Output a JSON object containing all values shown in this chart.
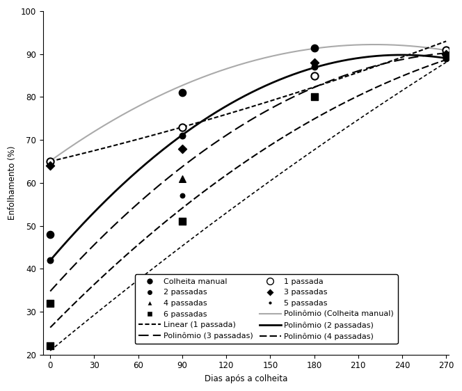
{
  "xlabel": "Dias após a colheita",
  "ylabel": "Enfolhamento (%)",
  "xlim": [
    -5,
    270
  ],
  "ylim": [
    20,
    100
  ],
  "xticks": [
    0,
    30,
    60,
    90,
    120,
    150,
    180,
    210,
    240,
    270
  ],
  "yticks": [
    20,
    30,
    40,
    50,
    60,
    70,
    80,
    90,
    100
  ],
  "scatter_colheita_manual": {
    "x": [
      0,
      90,
      180,
      270
    ],
    "y": [
      48,
      81,
      91.5,
      90
    ]
  },
  "scatter_2passadas": {
    "x": [
      0,
      90,
      180,
      270
    ],
    "y": [
      42,
      71,
      87,
      89
    ]
  },
  "scatter_4passadas": {
    "x": [
      90
    ],
    "y": [
      61
    ]
  },
  "scatter_5passadas": {
    "x": [
      90
    ],
    "y": [
      57
    ]
  },
  "scatter_6passadas": {
    "x": [
      0,
      90,
      180
    ],
    "y": [
      32,
      51,
      80
    ]
  },
  "scatter_1passada": {
    "x": [
      0,
      90,
      180,
      270
    ],
    "y": [
      65,
      73,
      85,
      91
    ]
  },
  "scatter_3passadas": {
    "x": [
      0,
      90,
      180,
      270
    ],
    "y": [
      64,
      68,
      88,
      90
    ]
  },
  "curve_cm": {
    "x": [
      0,
      90,
      180,
      270
    ],
    "y": [
      65,
      83,
      91,
      91
    ],
    "color": "#aaaaaa",
    "lw": 1.5,
    "ls": "solid"
  },
  "curve_1p": {
    "x": [
      0,
      90,
      270
    ],
    "y": [
      65,
      73,
      93
    ],
    "color": "#000000",
    "lw": 1.5,
    "ls": "dotted"
  },
  "curve_2p": {
    "x": [
      0,
      90,
      180,
      270
    ],
    "y": [
      42,
      71,
      87,
      89
    ],
    "color": "#000000",
    "lw": 2.0,
    "ls": "solid"
  },
  "curve_3p": {
    "x": [
      0,
      90,
      180,
      270
    ],
    "y": [
      35,
      63,
      83,
      90
    ],
    "color": "#000000",
    "lw": 1.5,
    "ls": "dashed_long"
  },
  "curve_4p": {
    "x": [
      0,
      90,
      180,
      270
    ],
    "y": [
      27,
      52,
      77,
      88
    ],
    "color": "#000000",
    "lw": 1.5,
    "ls": "dashed_short"
  },
  "curve_6p": {
    "x": [
      0,
      90,
      180,
      270
    ],
    "y": [
      22,
      42,
      71,
      87
    ],
    "color": "#000000",
    "lw": 1.2,
    "ls": "dotted_fine"
  },
  "fontsize": 8.5,
  "legend_fontsize": 8
}
